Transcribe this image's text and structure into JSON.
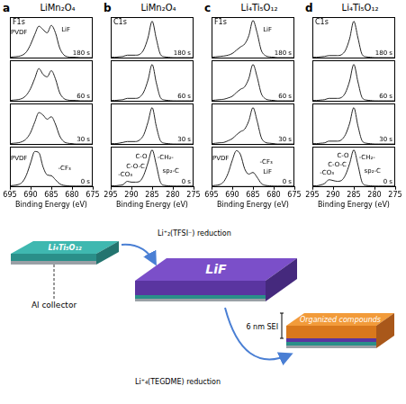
{
  "chart_data": [
    {
      "type": "line",
      "panel": "a",
      "title": "LiMn₂O₄",
      "subtitle": "F1s",
      "x_label": "Binding Energy (eV)",
      "x": [
        695,
        694,
        693,
        692,
        691,
        690,
        689,
        688,
        687,
        686,
        685,
        684,
        683,
        682,
        681,
        680,
        679,
        678,
        677,
        676,
        675
      ],
      "xlim": [
        695,
        675
      ],
      "xticks": [
        695,
        690,
        685,
        680,
        675
      ],
      "ylim": [
        0,
        100
      ],
      "grid": false,
      "tick_labels": "x",
      "series": [
        {
          "name": "180 s",
          "color": "#222222",
          "values": [
            3,
            4,
            5,
            8,
            16,
            34,
            58,
            78,
            70,
            62,
            80,
            62,
            26,
            9,
            4,
            3,
            3,
            2,
            2,
            2,
            2
          ],
          "annotations": [
            {
              "text": "PVDF",
              "x": 692.8,
              "y": 62
            },
            {
              "text": "LiF",
              "x": 681.5,
              "y": 70
            }
          ]
        },
        {
          "name": "60 s",
          "color": "#222222",
          "values": [
            3,
            4,
            5,
            8,
            16,
            32,
            56,
            80,
            66,
            60,
            75,
            55,
            22,
            8,
            4,
            3,
            3,
            2,
            2,
            2,
            2
          ]
        },
        {
          "name": "30 s",
          "color": "#222222",
          "values": [
            3,
            4,
            5,
            8,
            15,
            30,
            55,
            78,
            72,
            62,
            68,
            50,
            22,
            8,
            4,
            3,
            2,
            2,
            2,
            2,
            2
          ]
        },
        {
          "name": "0 s",
          "color": "#222222",
          "values": [
            3,
            4,
            6,
            12,
            30,
            60,
            88,
            85,
            50,
            30,
            28,
            18,
            8,
            4,
            3,
            2,
            2,
            2,
            2,
            2,
            2
          ],
          "annotations": [
            {
              "text": "PVDF",
              "x": 692.8,
              "y": 70
            },
            {
              "text": "-CF₃",
              "x": 681.8,
              "y": 45
            }
          ]
        }
      ]
    },
    {
      "type": "line",
      "panel": "b",
      "title": "LiMn₂O₄",
      "subtitle": "C1s",
      "x_label": "Binding Energy (eV)",
      "x": [
        295,
        294,
        293,
        292,
        291,
        290,
        289,
        288,
        287,
        286,
        285,
        284,
        283,
        282,
        281,
        280,
        279,
        278,
        277,
        276,
        275
      ],
      "xlim": [
        295,
        275
      ],
      "xticks": [
        295,
        290,
        285,
        280,
        275
      ],
      "ylim": [
        0,
        100
      ],
      "grid": false,
      "tick_labels": "x",
      "series": [
        {
          "name": "180 s",
          "color": "#222222",
          "values": [
            3,
            3,
            4,
            5,
            8,
            8,
            8,
            10,
            22,
            50,
            90,
            48,
            10,
            4,
            3,
            2,
            2,
            2,
            2,
            2,
            2
          ]
        },
        {
          "name": "60 s",
          "color": "#222222",
          "values": [
            3,
            3,
            4,
            5,
            8,
            8,
            8,
            11,
            24,
            52,
            90,
            46,
            10,
            4,
            3,
            2,
            2,
            2,
            2,
            2,
            2
          ]
        },
        {
          "name": "30 s",
          "color": "#222222",
          "values": [
            3,
            3,
            4,
            6,
            8,
            8,
            8,
            12,
            25,
            55,
            90,
            45,
            10,
            4,
            3,
            2,
            2,
            2,
            2,
            2,
            2
          ]
        },
        {
          "name": "0 s",
          "color": "#222222",
          "values": [
            3,
            3,
            4,
            6,
            14,
            12,
            12,
            14,
            30,
            60,
            92,
            55,
            12,
            4,
            3,
            2,
            2,
            2,
            2,
            2,
            2
          ],
          "annotations": [
            {
              "text": "-CO₃",
              "x": 291.5,
              "y": 30
            },
            {
              "text": "C-O-C",
              "x": 289,
              "y": 50
            },
            {
              "text": "C-O",
              "x": 287.6,
              "y": 76
            },
            {
              "text": "-CH₂-",
              "x": 281.8,
              "y": 72
            },
            {
              "text": "sp₂-C",
              "x": 280.5,
              "y": 40
            }
          ]
        }
      ]
    },
    {
      "type": "line",
      "panel": "c",
      "title": "Li₄Ti₅O₁₂",
      "subtitle": "F1s",
      "x_label": "Binding Energy (eV)",
      "x": [
        695,
        694,
        693,
        692,
        691,
        690,
        689,
        688,
        687,
        686,
        685,
        684,
        683,
        682,
        681,
        680,
        679,
        678,
        677,
        676,
        675
      ],
      "xlim": [
        695,
        675
      ],
      "xticks": [
        695,
        690,
        685,
        680,
        675
      ],
      "ylim": [
        0,
        100
      ],
      "grid": false,
      "tick_labels": "x",
      "series": [
        {
          "name": "180 s",
          "color": "#222222",
          "values": [
            3,
            4,
            5,
            6,
            8,
            12,
            20,
            28,
            35,
            55,
            92,
            62,
            20,
            7,
            4,
            3,
            2,
            2,
            2,
            2,
            2
          ],
          "annotations": [
            {
              "text": "LiF",
              "x": 681.5,
              "y": 70
            }
          ]
        },
        {
          "name": "60 s",
          "color": "#222222",
          "values": [
            3,
            4,
            5,
            6,
            9,
            13,
            22,
            30,
            36,
            56,
            90,
            60,
            20,
            7,
            4,
            3,
            2,
            2,
            2,
            2,
            2
          ]
        },
        {
          "name": "30 s",
          "color": "#222222",
          "values": [
            3,
            4,
            5,
            6,
            10,
            15,
            24,
            32,
            38,
            58,
            90,
            58,
            18,
            6,
            4,
            3,
            2,
            2,
            2,
            2,
            2
          ]
        },
        {
          "name": "0 s",
          "color": "#222222",
          "values": [
            3,
            4,
            6,
            14,
            34,
            66,
            90,
            80,
            45,
            32,
            36,
            24,
            9,
            4,
            3,
            2,
            2,
            2,
            2,
            2,
            2
          ],
          "annotations": [
            {
              "text": "PVDF",
              "x": 692.8,
              "y": 70
            },
            {
              "text": "-CF₃",
              "x": 681.8,
              "y": 62
            },
            {
              "text": "LiF",
              "x": 681.5,
              "y": 38
            }
          ]
        }
      ]
    },
    {
      "type": "line",
      "panel": "d",
      "title": "Li₄Ti₅O₁₂",
      "subtitle": "C1s",
      "x_label": "Binding Energy (eV)",
      "x": [
        295,
        294,
        293,
        292,
        291,
        290,
        289,
        288,
        287,
        286,
        285,
        284,
        283,
        282,
        281,
        280,
        279,
        278,
        277,
        276,
        275
      ],
      "xlim": [
        295,
        275
      ],
      "xticks": [
        295,
        290,
        285,
        280,
        275
      ],
      "ylim": [
        0,
        100
      ],
      "grid": false,
      "tick_labels": "x",
      "series": [
        {
          "name": "180 s",
          "color": "#222222",
          "values": [
            3,
            3,
            4,
            5,
            7,
            7,
            7,
            9,
            20,
            48,
            90,
            50,
            10,
            4,
            3,
            2,
            2,
            2,
            2,
            2,
            2
          ]
        },
        {
          "name": "60 s",
          "color": "#222222",
          "values": [
            3,
            3,
            4,
            5,
            8,
            8,
            8,
            10,
            22,
            50,
            90,
            48,
            10,
            4,
            3,
            2,
            2,
            2,
            2,
            2,
            2
          ]
        },
        {
          "name": "30 s",
          "color": "#222222",
          "values": [
            3,
            3,
            4,
            5,
            9,
            9,
            9,
            12,
            25,
            52,
            90,
            46,
            10,
            4,
            3,
            2,
            2,
            2,
            2,
            2,
            2
          ]
        },
        {
          "name": "0 s",
          "color": "#222222",
          "values": [
            3,
            3,
            5,
            9,
            18,
            16,
            14,
            16,
            30,
            58,
            92,
            55,
            12,
            4,
            3,
            2,
            2,
            2,
            2,
            2,
            2
          ],
          "annotations": [
            {
              "text": "-CO₃",
              "x": 291.5,
              "y": 34
            },
            {
              "text": "C-O-C",
              "x": 289,
              "y": 54
            },
            {
              "text": "C-O",
              "x": 287.6,
              "y": 78
            },
            {
              "text": "-CH₂-",
              "x": 281.8,
              "y": 72
            },
            {
              "text": "sp₂-C",
              "x": 280.5,
              "y": 40
            }
          ]
        }
      ]
    }
  ],
  "diagram": {
    "nodes": [
      {
        "label": "Li₄Ti₅O₁₂"
      },
      {
        "label": "Al collector"
      },
      {
        "label": "LiF"
      },
      {
        "label": "Organized compounds"
      },
      {
        "label": "6 nm SEI"
      }
    ],
    "edges": [
      {
        "label": "Li⁺₂(TFSI⁻) reduction"
      },
      {
        "label": "Li⁺₄(TEGDME) reduction"
      }
    ]
  }
}
